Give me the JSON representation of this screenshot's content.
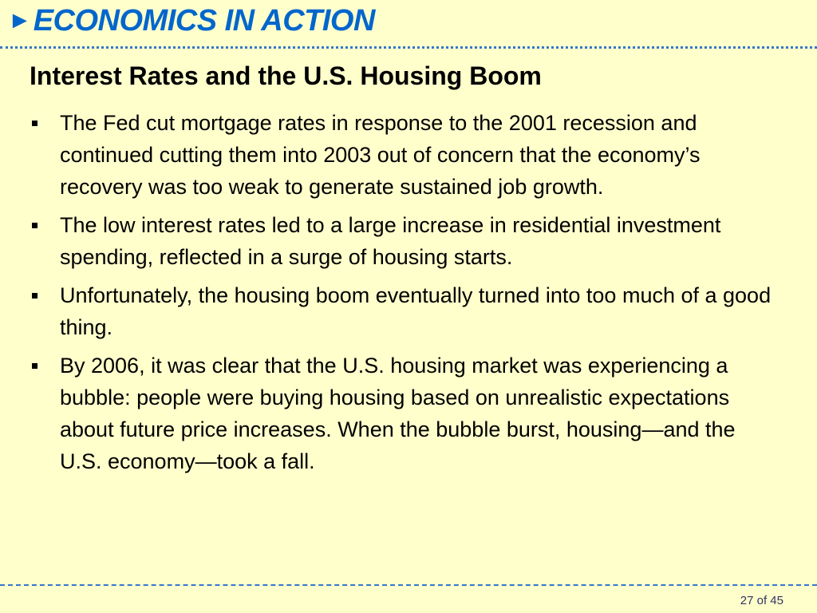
{
  "header": {
    "arrow_glyph": "►",
    "title": "ECONOMICS IN ACTION"
  },
  "subtitle": "Interest Rates and the U.S. Housing Boom",
  "bullets": [
    "The Fed cut mortgage rates in response to the 2001 recession and continued cutting them into 2003 out of concern that the economy’s recovery was too weak to generate sustained job growth.",
    "The low interest rates led to a large increase in residential investment spending, reflected in a surge of housing starts.",
    "Unfortunately, the housing boom eventually turned into too much of a good thing.",
    "By 2006, it was clear that the U.S. housing market was experiencing a bubble: people were buying housing based on unrealistic expectations about future price increases. When the bubble burst, housing—and the U.S. economy—took a fall."
  ],
  "footer": {
    "page_number": "27 of 45"
  },
  "colors": {
    "background": "#ffffcc",
    "accent": "#0066cc"
  }
}
